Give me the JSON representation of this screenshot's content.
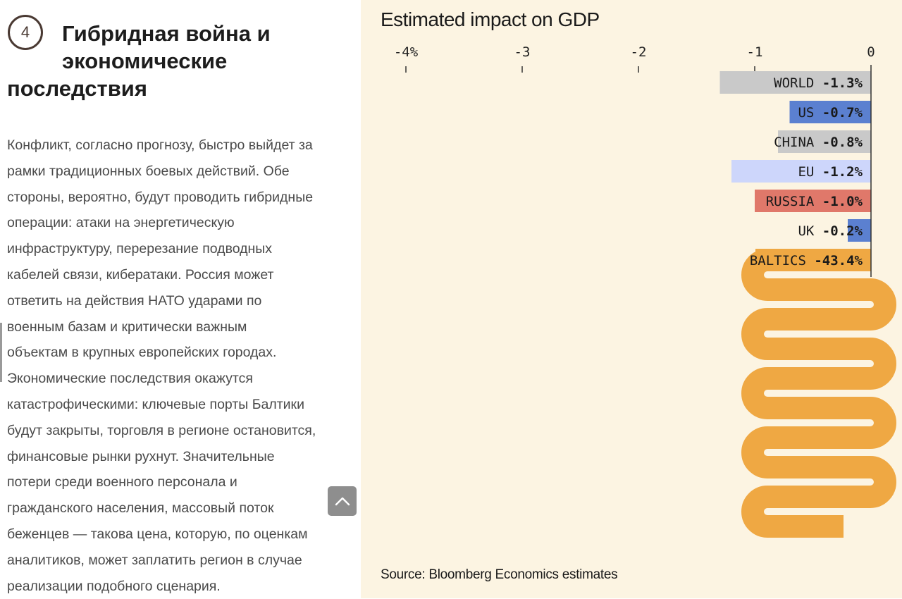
{
  "article": {
    "section_number": "4",
    "heading_lines": [
      "Гибридная война и",
      "экономические",
      "последствия"
    ],
    "body_lines": [
      "Конфликт, согласно прогнозу, быстро выйдет за",
      "рамки традиционных боевых действий. Обе",
      "стороны, вероятно, будут проводить гибридные",
      "операции: атаки на энергетическую",
      "инфраструктуру, перерезание подводных",
      "кабелей связи, кибератаки. Россия может",
      "ответить на действия НАТО ударами по",
      "военным базам и критически важным",
      "объектам в крупных европейских городах.",
      "Экономические последствия окажутся",
      "катастрофическими: ключевые порты Балтики",
      "будут закрыты, торговля в регионе остановится,",
      "финансовые рынки рухнут. Значительные",
      "потери среди военного персонала и",
      "гражданского населения, массовый поток",
      "беженцев — такова цена, которую, по оценкам",
      "аналитиков, может заплатить регион в случае",
      "реализации подобного сценария."
    ],
    "scroll_top_icon": "chevron-up-icon"
  },
  "chart_data": {
    "type": "bar",
    "orientation": "horizontal",
    "title": "Estimated impact on GDP",
    "source": "Source: Bloomberg Economics estimates",
    "xlabel": "",
    "ylabel": "",
    "xlim": [
      -4,
      0
    ],
    "x_ticks": [
      -4,
      -3,
      -2,
      -1,
      0
    ],
    "x_tick_labels": [
      "-4%",
      "-3",
      "-2",
      "-1",
      "0"
    ],
    "grid": false,
    "legend": "none",
    "categories": [
      "WORLD",
      "US",
      "CHINA",
      "EU",
      "RUSSIA",
      "UK",
      "BALTICS"
    ],
    "values": [
      -1.3,
      -0.7,
      -0.8,
      -1.2,
      -1.0,
      -0.2,
      -43.4
    ],
    "value_labels": [
      "-1.3%",
      "-0.7%",
      "-0.8%",
      "-1.2%",
      "-1.0%",
      "-0.2%",
      "-43.4%"
    ],
    "colors": [
      "#c9c9c9",
      "#5b80d0",
      "#c9c9c9",
      "#cdd6fb",
      "#e0786a",
      "#5b80d0",
      "#efa843"
    ],
    "annotations": [
      "BALTICS bar exceeds axis range and wraps in a serpentine shape"
    ]
  },
  "colors": {
    "chart_background": "#fcf4e2",
    "baltics": "#efa843",
    "axis": "#333333"
  }
}
